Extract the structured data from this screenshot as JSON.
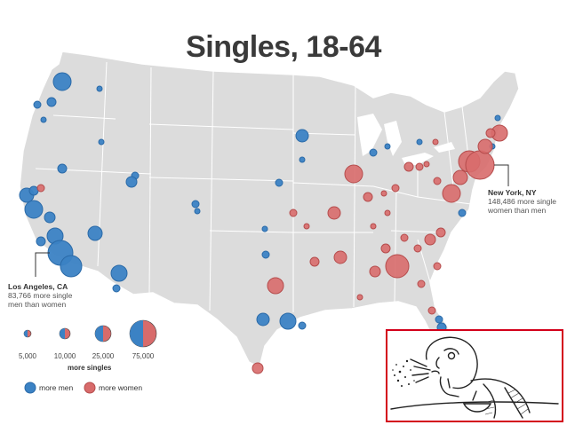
{
  "title": "Singles, 18-64",
  "colors": {
    "men": "#3b82c4",
    "women": "#d86b6b",
    "land": "#dcdcdc",
    "border": "#ffffff",
    "meme_frame": "#d3001a"
  },
  "callouts": {
    "new_york": {
      "name": "New York, NY",
      "line1": "148,486 more single",
      "line2": "women than men"
    },
    "los_angeles": {
      "name": "Los Angeles, CA",
      "line1": "83,766 more single",
      "line2": "men than women"
    }
  },
  "legend": {
    "sizes": [
      "5,000",
      "10,000",
      "25,000",
      "75,000"
    ],
    "title": "more singles",
    "men_label": "more men",
    "women_label": "more women"
  },
  "meme": {
    "icon": "spitting-cereal-guy-icon"
  }
}
